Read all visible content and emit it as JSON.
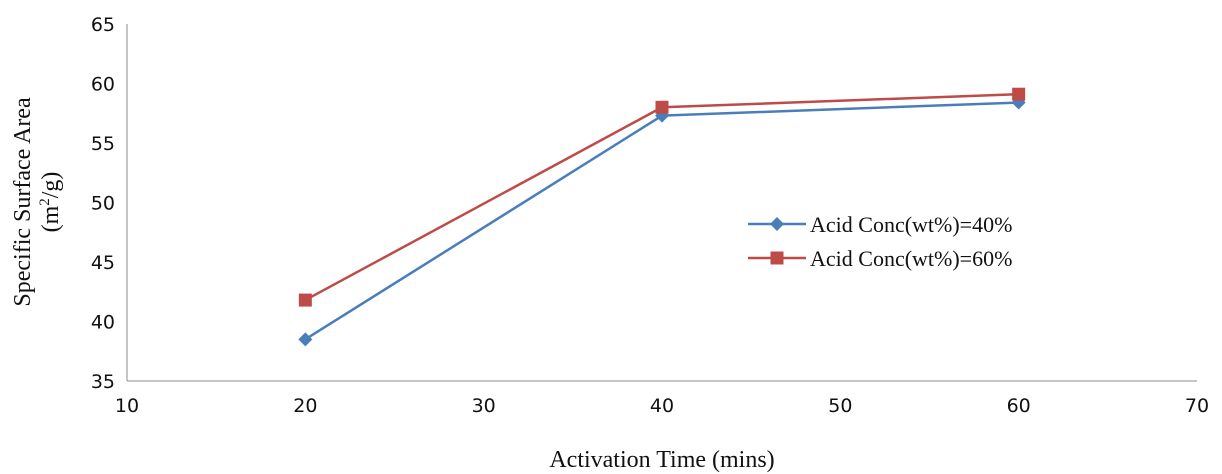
{
  "chart_data": {
    "type": "line",
    "title": "",
    "xlabel": "Activation Time (mins)",
    "ylabel_line1": "Specific Surface Area",
    "ylabel_line2_prefix": "(m",
    "ylabel_line2_sup": "2",
    "ylabel_line2_suffix": "/g)",
    "xlim": [
      10,
      70
    ],
    "ylim": [
      35,
      65
    ],
    "x_ticks": [
      10,
      20,
      30,
      40,
      50,
      60,
      70
    ],
    "y_ticks": [
      35,
      40,
      45,
      50,
      55,
      60,
      65
    ],
    "grid": false,
    "legend_position": "right-center",
    "series": [
      {
        "name": "Acid Conc(wt%)=40%",
        "x": [
          20,
          40,
          60
        ],
        "y": [
          38.5,
          57.3,
          58.4
        ],
        "color": "#4a7ebb",
        "marker": "diamond"
      },
      {
        "name": "Acid Conc(wt%)=60%",
        "x": [
          20,
          40,
          60
        ],
        "y": [
          41.8,
          58.0,
          59.1
        ],
        "color": "#be4b48",
        "marker": "square"
      }
    ]
  }
}
